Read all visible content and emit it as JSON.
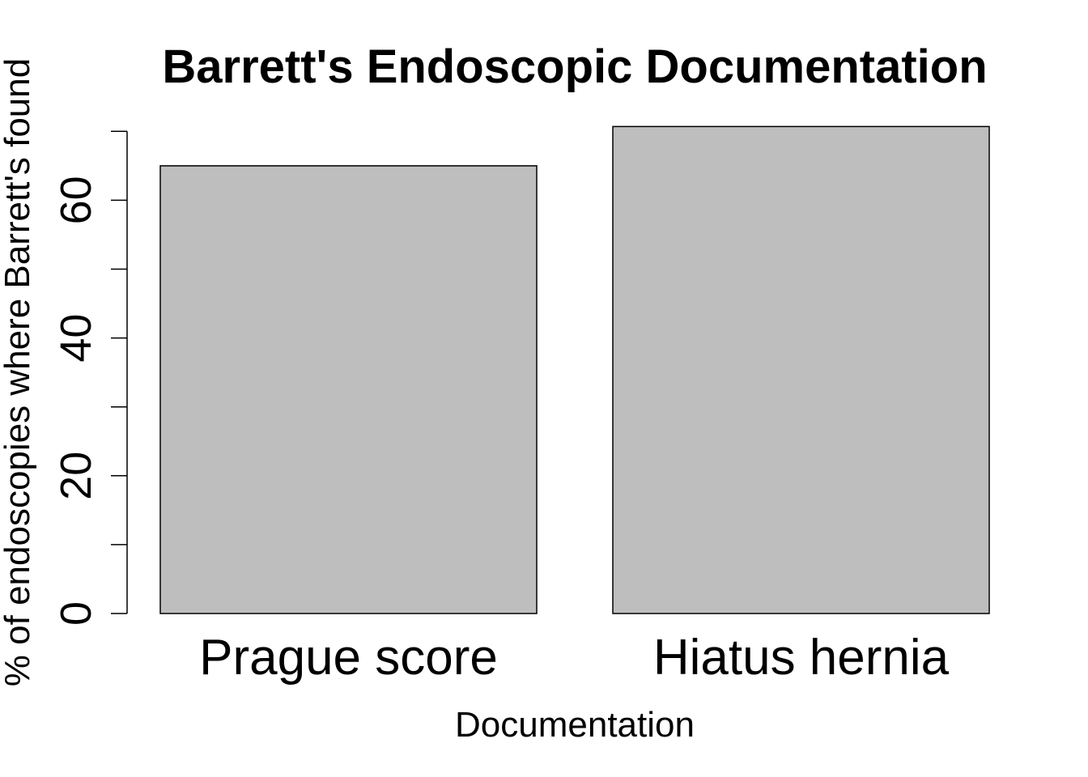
{
  "chart_data": {
    "type": "bar",
    "title": "Barrett's Endoscopic Documentation",
    "xlabel": "Documentation",
    "ylabel": "% of endoscopies where Barrett's found",
    "categories": [
      "Prague score",
      "Hiatus hernia"
    ],
    "values": [
      65,
      70.7
    ],
    "ylim": [
      0,
      70
    ],
    "yticks": [
      0,
      20,
      40,
      60
    ],
    "yticks_minor": [
      10,
      30,
      50,
      70
    ],
    "ytick_labels": [
      "0",
      "20",
      "40",
      "60"
    ],
    "grid": false,
    "legend": "none",
    "bar_color": "#bebebe",
    "bar_edge_color": "#000000"
  }
}
